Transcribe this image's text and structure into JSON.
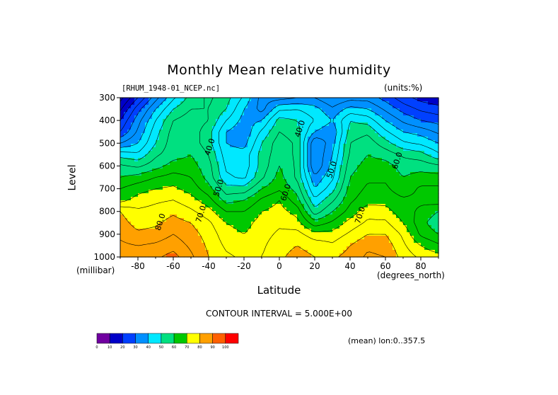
{
  "chart_data": {
    "type": "heatmap",
    "title": "Monthly Mean relative humidity",
    "dataset_label": "[RHUM_1948-01_NCEP.nc]",
    "units_label": "(units:%)",
    "xlabel": "Latitude",
    "x_units": "(degrees_north)",
    "ylabel": "Level",
    "y_units": "(millibar)",
    "xlim": [
      -90,
      90
    ],
    "ylim": [
      1000,
      300
    ],
    "x_ticks": [
      -80,
      -60,
      -40,
      -20,
      0,
      20,
      40,
      60,
      80
    ],
    "y_ticks": [
      300,
      400,
      500,
      600,
      700,
      800,
      900,
      1000
    ],
    "contour_interval_text": "CONTOUR INTERVAL = 5.000E+00",
    "footer_text": "(mean) lon:0..357.5",
    "colorbar": {
      "levels": [
        0,
        10,
        20,
        30,
        40,
        50,
        60,
        70,
        80,
        90,
        100
      ],
      "colors": [
        "#7000a0",
        "#0000c8",
        "#0040ff",
        "#0090ff",
        "#00e8ff",
        "#00e080",
        "#00c800",
        "#ffff00",
        "#ffa000",
        "#ff6000",
        "#ff0000"
      ]
    },
    "contour_labels": [
      {
        "text": "40.0",
        "x": -38,
        "y": 520
      },
      {
        "text": "40.0",
        "x": 13,
        "y": 440
      },
      {
        "text": "50.0",
        "x": -33,
        "y": 700
      },
      {
        "text": "60.0",
        "x": 5,
        "y": 720
      },
      {
        "text": "50.0",
        "x": 31,
        "y": 620
      },
      {
        "text": "60.0",
        "x": 68,
        "y": 580
      },
      {
        "text": "70.0",
        "x": -43,
        "y": 815
      },
      {
        "text": "80.0",
        "x": -66,
        "y": 850
      },
      {
        "text": "70.0",
        "x": 47,
        "y": 820
      }
    ],
    "grid_lat": [
      -90,
      -80,
      -70,
      -60,
      -50,
      -40,
      -30,
      -20,
      -10,
      0,
      10,
      20,
      30,
      40,
      50,
      60,
      70,
      80,
      90
    ],
    "grid_lev": [
      300,
      350,
      400,
      450,
      500,
      550,
      600,
      650,
      700,
      750,
      800,
      850,
      900,
      950,
      1000
    ],
    "rh": [
      [
        8,
        20,
        33,
        44,
        52,
        56,
        52,
        44,
        33,
        33,
        35,
        35,
        30,
        33,
        33,
        28,
        22,
        18,
        16
      ],
      [
        14,
        28,
        40,
        50,
        55,
        55,
        50,
        40,
        33,
        44,
        45,
        42,
        36,
        42,
        40,
        34,
        28,
        24,
        22
      ],
      [
        20,
        33,
        45,
        55,
        58,
        55,
        45,
        38,
        40,
        52,
        50,
        45,
        40,
        50,
        48,
        40,
        34,
        30,
        28
      ],
      [
        25,
        36,
        48,
        57,
        58,
        52,
        40,
        36,
        46,
        55,
        52,
        40,
        36,
        52,
        54,
        46,
        40,
        38,
        34
      ],
      [
        35,
        40,
        50,
        58,
        58,
        52,
        40,
        38,
        50,
        58,
        54,
        30,
        38,
        55,
        58,
        52,
        46,
        44,
        40
      ],
      [
        48,
        46,
        54,
        58,
        60,
        55,
        42,
        42,
        52,
        58,
        54,
        30,
        40,
        56,
        60,
        58,
        54,
        52,
        46
      ],
      [
        56,
        54,
        58,
        62,
        62,
        57,
        44,
        42,
        52,
        60,
        54,
        30,
        42,
        58,
        62,
        62,
        58,
        58,
        56
      ],
      [
        60,
        62,
        65,
        67,
        65,
        58,
        46,
        44,
        54,
        62,
        54,
        36,
        44,
        60,
        64,
        64,
        60,
        62,
        62
      ],
      [
        65,
        68,
        70,
        71,
        68,
        62,
        52,
        52,
        60,
        64,
        58,
        40,
        48,
        62,
        66,
        66,
        62,
        66,
        66
      ],
      [
        68,
        72,
        74,
        75,
        72,
        67,
        58,
        60,
        66,
        70,
        62,
        46,
        54,
        64,
        68,
        68,
        66,
        66,
        68
      ],
      [
        80,
        76,
        77,
        79,
        76,
        72,
        65,
        65,
        70,
        72,
        68,
        52,
        60,
        67,
        73,
        72,
        67,
        64,
        60
      ],
      [
        82,
        78,
        79,
        82,
        80,
        76,
        70,
        68,
        72,
        74,
        72,
        62,
        66,
        72,
        76,
        76,
        70,
        62,
        56
      ],
      [
        84,
        81,
        82,
        85,
        82,
        78,
        72,
        70,
        73,
        76,
        77,
        72,
        72,
        76,
        80,
        80,
        74,
        64,
        60
      ],
      [
        86,
        85,
        86,
        88,
        84,
        79,
        74,
        72,
        74,
        78,
        80,
        78,
        76,
        80,
        84,
        83,
        76,
        70,
        66
      ],
      [
        90,
        88,
        89,
        92,
        86,
        80,
        76,
        74,
        75,
        79,
        82,
        80,
        79,
        82,
        86,
        85,
        78,
        74,
        72
      ]
    ]
  }
}
